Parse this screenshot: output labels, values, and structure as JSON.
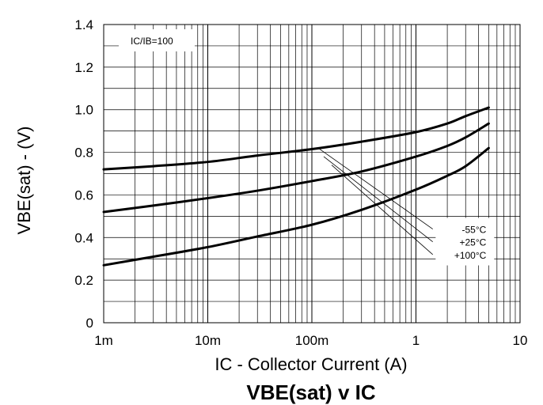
{
  "chart_data": {
    "type": "line",
    "title": "VBE(sat) v IC",
    "xlabel": "IC - Collector Current (A)",
    "ylabel": "VBE(sat) - (V)",
    "x_scale": "log",
    "xlim": [
      0.001,
      10
    ],
    "ylim": [
      0,
      1.4
    ],
    "x_ticks": [
      {
        "value": 0.001,
        "label": "1m"
      },
      {
        "value": 0.01,
        "label": "10m"
      },
      {
        "value": 0.1,
        "label": "100m"
      },
      {
        "value": 1,
        "label": "1"
      },
      {
        "value": 10,
        "label": "10"
      }
    ],
    "y_ticks": [
      {
        "value": 0,
        "label": "0"
      },
      {
        "value": 0.2,
        "label": "0.2"
      },
      {
        "value": 0.4,
        "label": "0.4"
      },
      {
        "value": 0.6,
        "label": "0.6"
      },
      {
        "value": 0.8,
        "label": "0.8"
      },
      {
        "value": 1.0,
        "label": "1.0"
      },
      {
        "value": 1.2,
        "label": "1.2"
      },
      {
        "value": 1.4,
        "label": "1.4"
      }
    ],
    "grid": true,
    "condition_label": "IC/IB=100",
    "series": [
      {
        "name": "-55°C",
        "x": [
          0.001,
          0.003,
          0.01,
          0.03,
          0.1,
          0.3,
          1,
          2,
          3,
          5
        ],
        "y": [
          0.72,
          0.735,
          0.755,
          0.785,
          0.815,
          0.85,
          0.895,
          0.935,
          0.97,
          1.01
        ]
      },
      {
        "name": "+25°C",
        "x": [
          0.001,
          0.003,
          0.01,
          0.03,
          0.1,
          0.3,
          1,
          2,
          3,
          5
        ],
        "y": [
          0.52,
          0.55,
          0.585,
          0.62,
          0.665,
          0.71,
          0.78,
          0.83,
          0.87,
          0.935
        ]
      },
      {
        "name": "+100°C",
        "x": [
          0.001,
          0.003,
          0.01,
          0.03,
          0.1,
          0.3,
          1,
          2,
          3,
          5
        ],
        "y": [
          0.27,
          0.31,
          0.355,
          0.405,
          0.46,
          0.53,
          0.625,
          0.69,
          0.735,
          0.82
        ]
      }
    ],
    "leader_lines": [
      {
        "from": [
          0.115,
          0.82
        ],
        "to": [
          1.45,
          0.44
        ]
      },
      {
        "from": [
          0.13,
          0.78
        ],
        "to": [
          1.45,
          0.38
        ]
      },
      {
        "from": [
          0.155,
          0.74
        ],
        "to": [
          1.45,
          0.32
        ]
      }
    ],
    "label_anchor": {
      "x": 1.6,
      "y_values": [
        0.44,
        0.38,
        0.32
      ]
    }
  }
}
